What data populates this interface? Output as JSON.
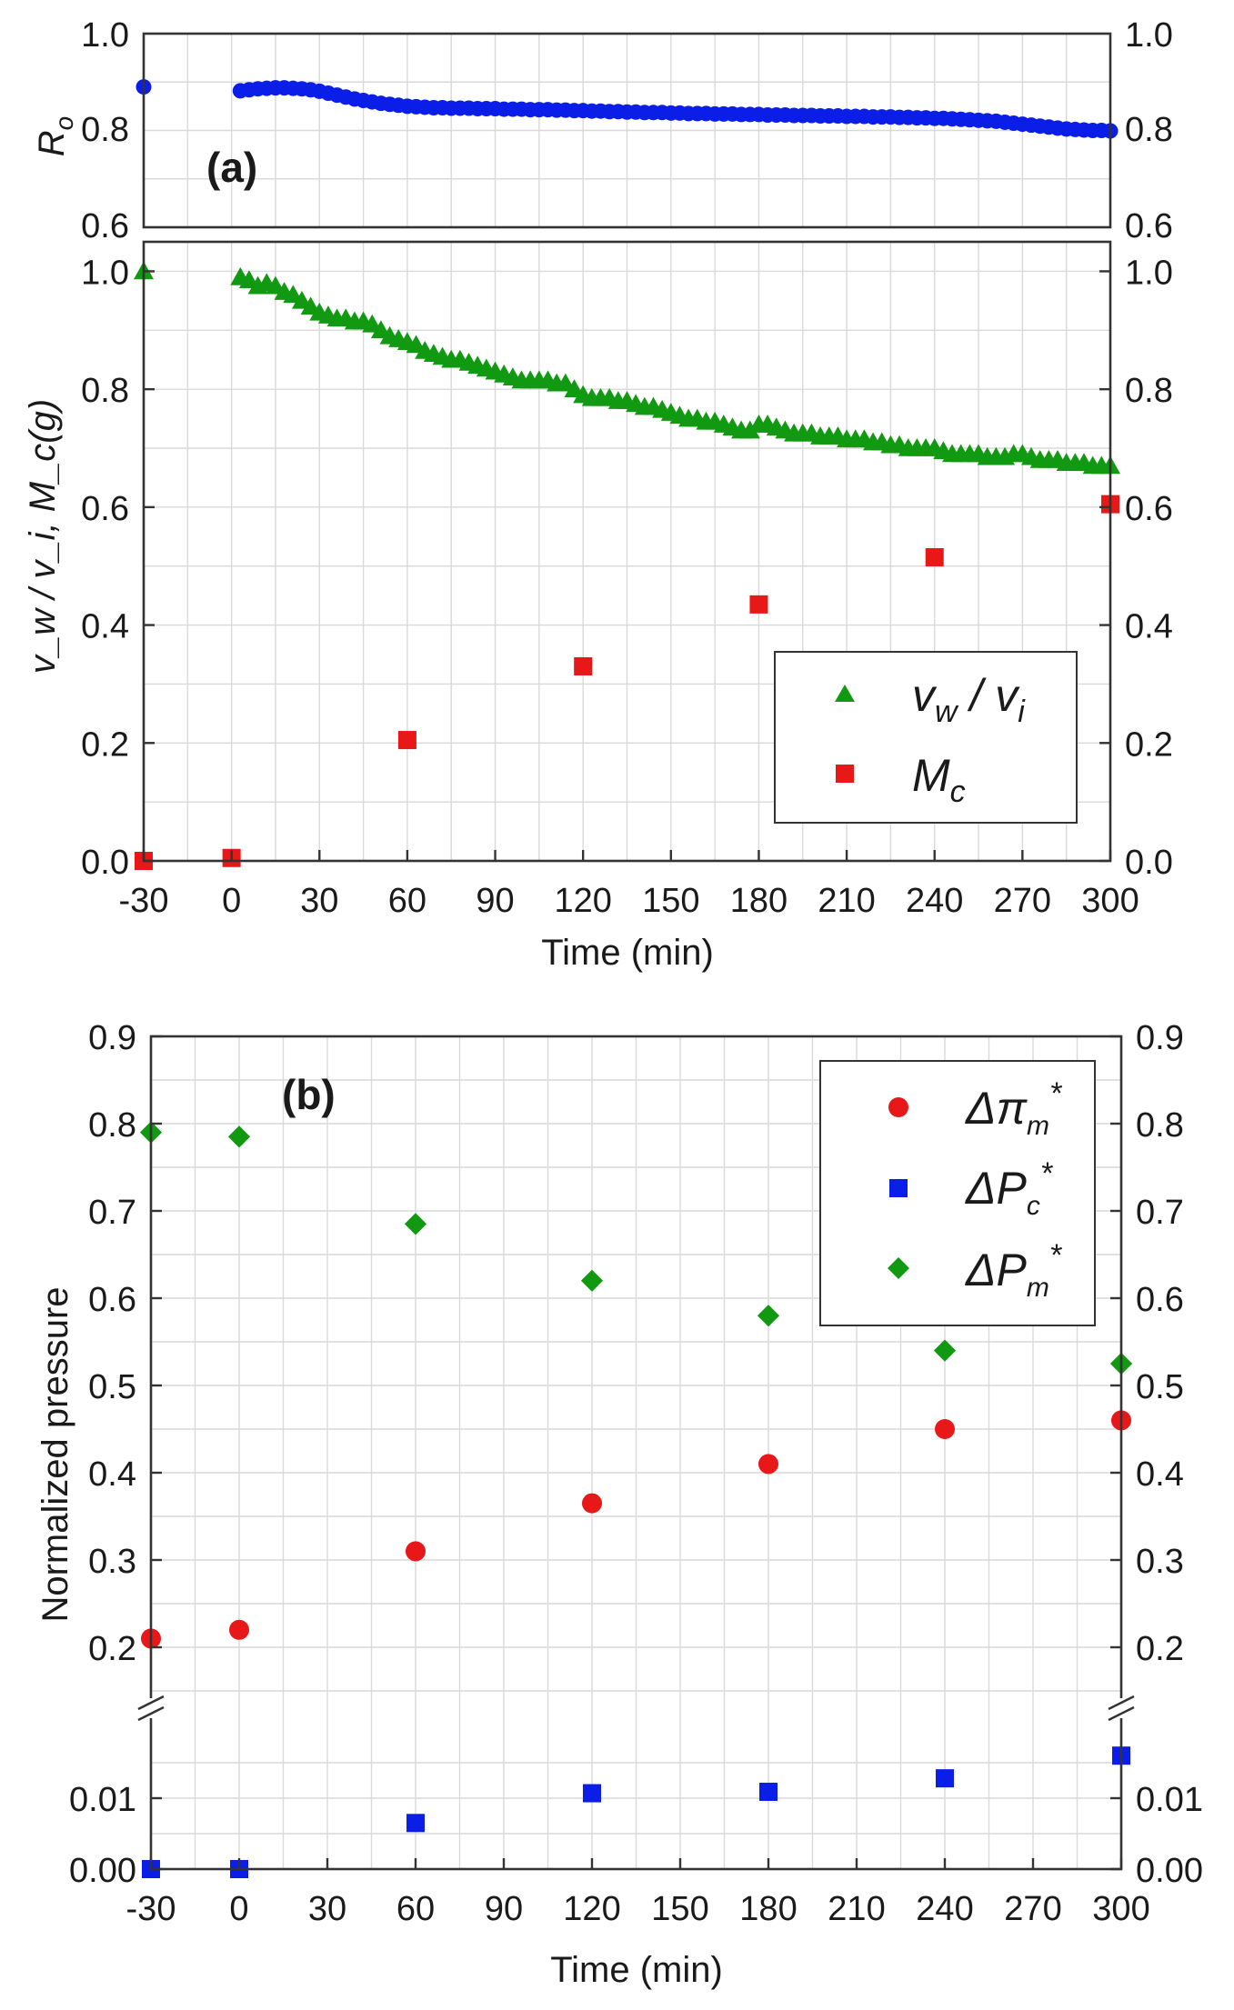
{
  "colors": {
    "ro": "#0a1ee8",
    "vw": "#119a11",
    "mc": "#e81818",
    "dpi": "#e81818",
    "dpc": "#0a1ee8",
    "dpm": "#119a11"
  },
  "chart_data": [
    {
      "id": "a_top",
      "type": "scatter",
      "panel_label": "",
      "ylabel": "R",
      "ylabel_sub": "o",
      "xlim": [
        -30,
        300
      ],
      "ylim": [
        0.6,
        1.0
      ],
      "yticks": [
        "1.0",
        "0.8",
        "0.6"
      ],
      "series": [
        {
          "name": "R_o",
          "marker": "circle",
          "color_key": "ro",
          "x": [
            -30,
            3,
            6,
            9,
            12,
            15,
            18,
            21,
            24,
            27,
            30,
            33,
            36,
            39,
            42,
            45,
            48,
            51,
            54,
            57,
            60,
            63,
            66,
            69,
            72,
            75,
            78,
            81,
            84,
            87,
            90,
            93,
            96,
            99,
            102,
            105,
            108,
            111,
            114,
            117,
            120,
            123,
            126,
            129,
            132,
            135,
            138,
            141,
            144,
            147,
            150,
            153,
            156,
            159,
            162,
            165,
            168,
            171,
            174,
            177,
            180,
            183,
            186,
            189,
            192,
            195,
            198,
            201,
            204,
            207,
            210,
            213,
            216,
            219,
            222,
            225,
            228,
            231,
            234,
            237,
            240,
            243,
            246,
            249,
            252,
            255,
            258,
            261,
            264,
            267,
            270,
            273,
            276,
            279,
            282,
            285,
            288,
            291,
            294,
            297,
            300
          ],
          "y": [
            0.89,
            0.882,
            0.884,
            0.886,
            0.887,
            0.888,
            0.888,
            0.887,
            0.886,
            0.884,
            0.881,
            0.877,
            0.873,
            0.869,
            0.865,
            0.862,
            0.859,
            0.856,
            0.854,
            0.852,
            0.85,
            0.849,
            0.848,
            0.847,
            0.847,
            0.846,
            0.846,
            0.846,
            0.845,
            0.845,
            0.845,
            0.844,
            0.844,
            0.844,
            0.843,
            0.843,
            0.843,
            0.842,
            0.842,
            0.841,
            0.841,
            0.84,
            0.84,
            0.839,
            0.839,
            0.838,
            0.838,
            0.837,
            0.837,
            0.837,
            0.836,
            0.836,
            0.835,
            0.835,
            0.835,
            0.834,
            0.834,
            0.834,
            0.833,
            0.833,
            0.833,
            0.832,
            0.832,
            0.832,
            0.831,
            0.831,
            0.831,
            0.83,
            0.83,
            0.83,
            0.829,
            0.829,
            0.829,
            0.828,
            0.828,
            0.828,
            0.827,
            0.827,
            0.826,
            0.826,
            0.825,
            0.825,
            0.824,
            0.823,
            0.822,
            0.821,
            0.82,
            0.819,
            0.817,
            0.815,
            0.813,
            0.811,
            0.809,
            0.807,
            0.805,
            0.803,
            0.802,
            0.801,
            0.8,
            0.8,
            0.799
          ]
        }
      ]
    },
    {
      "id": "a_bottom",
      "type": "scatter",
      "panel_label": "(a)",
      "ylabel": "v_w / v_i, M_c(g)",
      "xlabel": "Time (min)",
      "xlim": [
        -30,
        300
      ],
      "xticks": [
        "-30",
        "0",
        "30",
        "60",
        "90",
        "120",
        "150",
        "180",
        "210",
        "240",
        "270",
        "300"
      ],
      "ylim": [
        0.0,
        1.05
      ],
      "yticks": [
        "1.0",
        "0.8",
        "0.6",
        "0.4",
        "0.2",
        "0.0"
      ],
      "legend": {
        "position": "right-middle",
        "entries": [
          {
            "label": "v_w / v_i",
            "text_main": "v",
            "text_sub": "w",
            "text_mid": " / v",
            "text_sub2": "i"
          },
          {
            "label": "M_c",
            "text_main": "M",
            "text_sub": "c"
          }
        ]
      },
      "series": [
        {
          "name": "v_w / v_i",
          "marker": "triangle",
          "color_key": "vw",
          "x": [
            -30,
            3,
            6,
            9,
            12,
            15,
            18,
            21,
            24,
            27,
            30,
            33,
            36,
            39,
            42,
            45,
            48,
            51,
            54,
            57,
            60,
            63,
            66,
            69,
            72,
            75,
            78,
            81,
            84,
            87,
            90,
            93,
            96,
            99,
            102,
            105,
            108,
            111,
            114,
            117,
            120,
            123,
            126,
            129,
            132,
            135,
            138,
            141,
            144,
            147,
            150,
            153,
            156,
            159,
            162,
            165,
            168,
            171,
            174,
            177,
            180,
            183,
            186,
            189,
            192,
            195,
            198,
            201,
            204,
            207,
            210,
            213,
            216,
            219,
            222,
            225,
            228,
            231,
            234,
            237,
            240,
            243,
            246,
            249,
            252,
            255,
            258,
            261,
            264,
            267,
            270,
            273,
            276,
            279,
            282,
            285,
            288,
            291,
            294,
            297,
            300
          ],
          "y": [
            1.0,
            0.99,
            0.985,
            0.975,
            0.98,
            0.975,
            0.965,
            0.96,
            0.95,
            0.94,
            0.93,
            0.925,
            0.92,
            0.92,
            0.915,
            0.915,
            0.91,
            0.9,
            0.89,
            0.885,
            0.88,
            0.875,
            0.865,
            0.86,
            0.855,
            0.85,
            0.85,
            0.845,
            0.84,
            0.835,
            0.83,
            0.825,
            0.82,
            0.815,
            0.815,
            0.815,
            0.815,
            0.81,
            0.81,
            0.8,
            0.79,
            0.785,
            0.785,
            0.785,
            0.78,
            0.78,
            0.775,
            0.77,
            0.77,
            0.765,
            0.76,
            0.755,
            0.75,
            0.75,
            0.745,
            0.745,
            0.74,
            0.735,
            0.73,
            0.73,
            0.74,
            0.74,
            0.735,
            0.73,
            0.725,
            0.725,
            0.725,
            0.72,
            0.72,
            0.72,
            0.715,
            0.715,
            0.715,
            0.71,
            0.71,
            0.705,
            0.705,
            0.7,
            0.7,
            0.7,
            0.7,
            0.695,
            0.69,
            0.69,
            0.69,
            0.69,
            0.685,
            0.685,
            0.685,
            0.69,
            0.69,
            0.685,
            0.68,
            0.68,
            0.68,
            0.675,
            0.675,
            0.675,
            0.67,
            0.67,
            0.67
          ]
        },
        {
          "name": "M_c",
          "marker": "square",
          "color_key": "mc",
          "x": [
            -30,
            0,
            60,
            120,
            180,
            240,
            300
          ],
          "y": [
            0.0,
            0.005,
            0.205,
            0.33,
            0.435,
            0.515,
            0.605
          ]
        }
      ]
    },
    {
      "id": "b",
      "type": "scatter",
      "panel_label": "(b)",
      "ylabel": "Normalized pressure",
      "xlabel": "Time (min)",
      "xlim": [
        -30,
        300
      ],
      "xticks": [
        "-30",
        "0",
        "30",
        "60",
        "90",
        "120",
        "150",
        "180",
        "210",
        "240",
        "270",
        "300"
      ],
      "ylim_upper": [
        0.15,
        0.9
      ],
      "yticks_upper": [
        "0.9",
        "0.8",
        "0.7",
        "0.6",
        "0.5",
        "0.4",
        "0.3",
        "0.2"
      ],
      "ylim_lower": [
        0.0,
        0.02
      ],
      "yticks_lower": [
        "0.01",
        "0.00"
      ],
      "axis_break": true,
      "legend": {
        "position": "top-right",
        "entries": [
          {
            "label": "Δπ_m*",
            "text_main": "Δπ",
            "text_sub": "m",
            "text_sup": "*"
          },
          {
            "label": "ΔP_c*",
            "text_main": "ΔP",
            "text_sub": "c",
            "text_sup": "*"
          },
          {
            "label": "ΔP_m*",
            "text_main": "ΔP",
            "text_sub": "m",
            "text_sup": "*"
          }
        ]
      },
      "series": [
        {
          "name": "Δπ_m*",
          "marker": "circle",
          "color_key": "dpi",
          "segment": "upper",
          "x": [
            -30,
            0,
            60,
            120,
            180,
            240,
            300
          ],
          "y": [
            0.21,
            0.22,
            0.31,
            0.365,
            0.41,
            0.45,
            0.46
          ]
        },
        {
          "name": "ΔP_c*",
          "marker": "square",
          "color_key": "dpc",
          "segment": "lower",
          "x": [
            -30,
            0,
            60,
            120,
            180,
            240,
            300
          ],
          "y": [
            0.0,
            0.0,
            0.0065,
            0.0107,
            0.0109,
            0.0128,
            0.016
          ]
        },
        {
          "name": "ΔP_m*",
          "marker": "diamond",
          "color_key": "dpm",
          "segment": "upper",
          "x": [
            -30,
            0,
            60,
            120,
            180,
            240,
            300
          ],
          "y": [
            0.79,
            0.785,
            0.685,
            0.62,
            0.58,
            0.54,
            0.525
          ]
        }
      ]
    }
  ]
}
